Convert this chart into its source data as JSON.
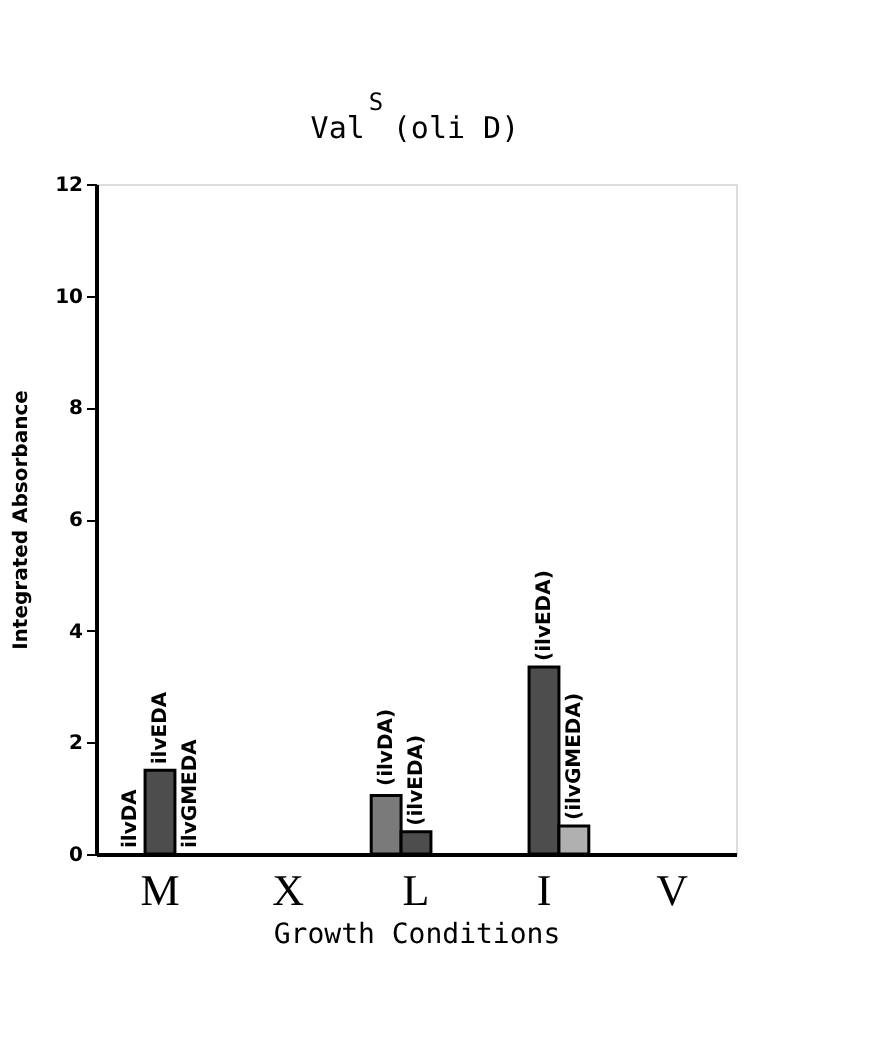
{
  "chart_data": {
    "type": "bar",
    "title": "Val$^{S}$ (oli D)",
    "xlabel": "Growth Conditions",
    "ylabel": "Integrated Absorbance",
    "categories": [
      "M",
      "X",
      "L",
      "I",
      "V"
    ],
    "series": [
      {
        "color": "#7a7a7a",
        "values": [
          null,
          null,
          1.05,
          null,
          null
        ]
      },
      {
        "color": "#4d4d4d",
        "values": [
          1.5,
          null,
          0.4,
          3.35,
          null
        ]
      },
      {
        "color": "#b0b0b0",
        "values": [
          null,
          null,
          null,
          0.5,
          null
        ]
      }
    ],
    "ylim": [
      0,
      12
    ],
    "yticks": [
      0,
      2,
      4,
      6,
      8,
      10,
      12
    ],
    "grid": false,
    "annotations": [
      "ilvDA",
      {
        "text": "ilvEDA",
        "x": "M",
        "y": 1.5
      },
      "ilvGMEDA",
      "(ilvDA)",
      {
        "text": "(ilvEDA)",
        "x": "L",
        "y": 0.4
      },
      {
        "text": "(ilvEDA)",
        "x": "I",
        "y": 3.35
      },
      "(ilvGMEDA)"
    ]
  }
}
